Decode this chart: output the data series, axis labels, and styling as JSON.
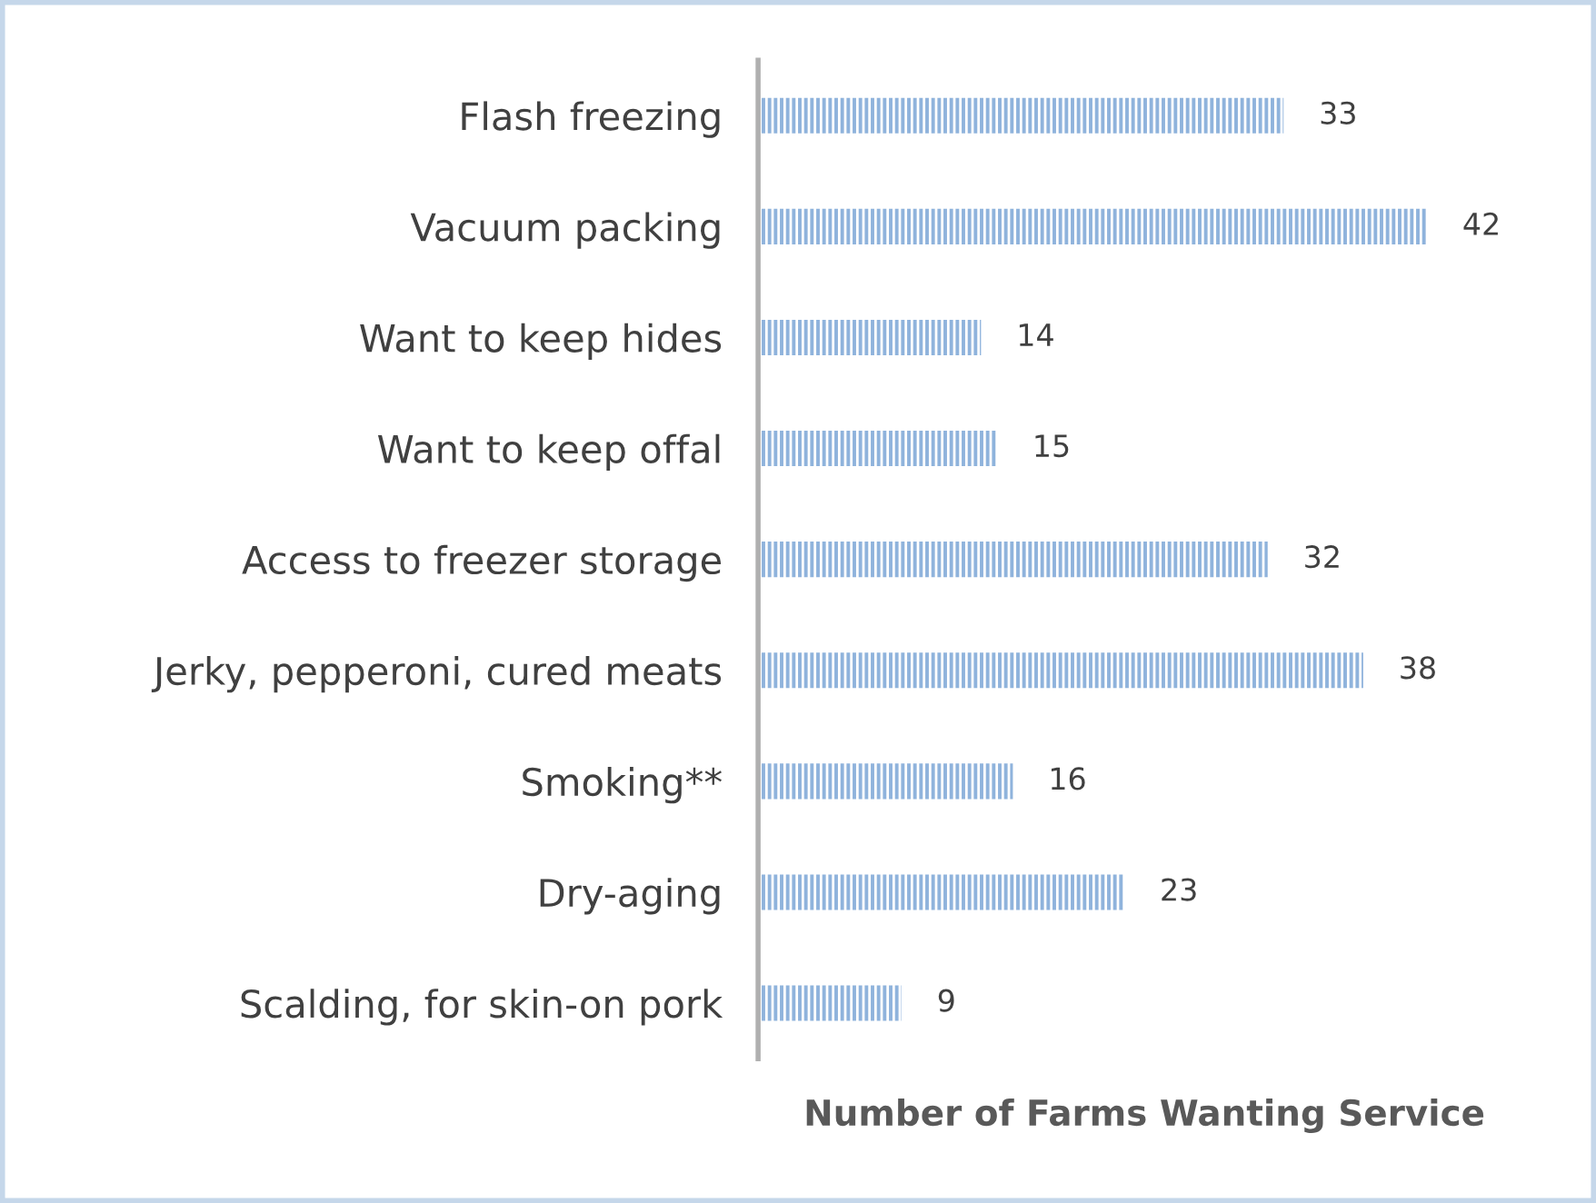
{
  "chart_data": {
    "type": "bar",
    "orientation": "horizontal",
    "categories": [
      "Flash freezing",
      "Vacuum packing",
      "Want to keep hides",
      "Want to keep offal",
      "Access to freezer storage",
      "Jerky, pepperoni, cured meats",
      "Smoking**",
      "Dry-aging",
      "Scalding, for skin-on pork"
    ],
    "values": [
      33,
      42,
      14,
      15,
      32,
      38,
      16,
      23,
      9
    ],
    "color": "#8fb3dc",
    "xlabel": "Number of Farms Wanting Service",
    "data_labels": true,
    "grid": false,
    "legend": false,
    "tick_labels": "y"
  }
}
